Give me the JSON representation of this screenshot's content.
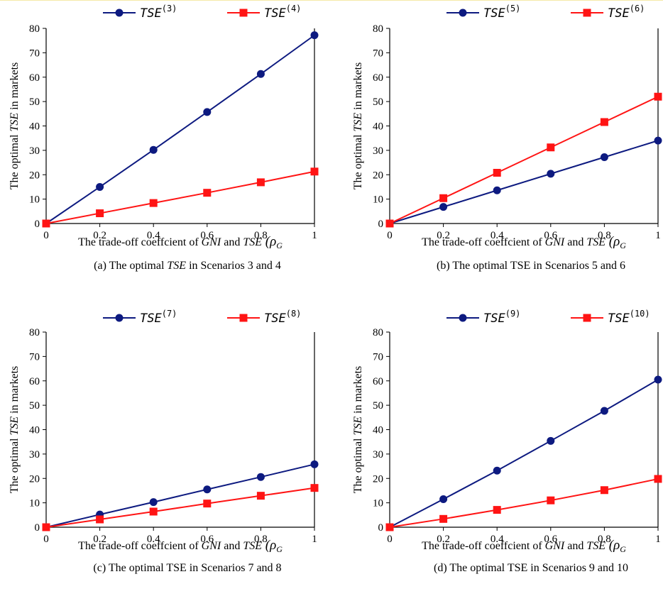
{
  "chart_data": [
    {
      "type": "line",
      "x": [
        0,
        0.2,
        0.4,
        0.6,
        0.8,
        1
      ],
      "xtick_labels": [
        "0",
        "0.2",
        "0.4",
        "0.6",
        "0.8",
        "1"
      ],
      "ylim": [
        0,
        80
      ],
      "yticks": [
        0,
        10,
        20,
        30,
        40,
        50,
        60,
        70,
        80
      ],
      "ylabel": {
        "pre": "The optimal ",
        "em": "TSE",
        "post": " in markets"
      },
      "xlabel": {
        "pre": "The trade-off coeffcient of ",
        "em1": "GNI",
        "mid": " and ",
        "em2": "TSE",
        "sym": " (ρ",
        "sub": "G"
      },
      "caption": {
        "pre": "(a) The optimal ",
        "em": "TSE",
        "post": " in Scenarios 3 and 4"
      },
      "legend_position": "top",
      "series": [
        {
          "name": "TSE",
          "sup": "(3)",
          "color": "#0d1a80",
          "marker": "circle",
          "values": [
            0,
            15,
            30.2,
            45.7,
            61.3,
            77.2
          ]
        },
        {
          "name": "TSE",
          "sup": "(4)",
          "color": "#ff1414",
          "marker": "square",
          "values": [
            0,
            4.2,
            8.4,
            12.6,
            16.9,
            21.3
          ]
        }
      ]
    },
    {
      "type": "line",
      "x": [
        0,
        0.2,
        0.4,
        0.6,
        0.8,
        1
      ],
      "xtick_labels": [
        "0",
        "0.2",
        "0.4",
        "0.6",
        "0.8",
        "1"
      ],
      "ylim": [
        0,
        80
      ],
      "yticks": [
        0,
        10,
        20,
        30,
        40,
        50,
        60,
        70,
        80
      ],
      "ylabel": {
        "pre": "The optimal ",
        "em": "TSE",
        "post": " in markets"
      },
      "xlabel": {
        "pre": "The trade-off coeffcient of ",
        "em1": "GNI",
        "mid": " and ",
        "em2": "TSE",
        "sym": " (ρ",
        "sub": "G"
      },
      "caption": {
        "pre": "(b) The optimal TSE in Scenarios 5 and 6",
        "em": "",
        "post": ""
      },
      "legend_position": "top",
      "series": [
        {
          "name": "TSE",
          "sup": "(5)",
          "color": "#0d1a80",
          "marker": "circle",
          "values": [
            0,
            6.8,
            13.6,
            20.4,
            27.2,
            34
          ]
        },
        {
          "name": "TSE",
          "sup": "(6)",
          "color": "#ff1414",
          "marker": "square",
          "values": [
            0,
            10.4,
            20.8,
            31.2,
            41.6,
            52
          ]
        }
      ]
    },
    {
      "type": "line",
      "x": [
        0,
        0.2,
        0.4,
        0.6,
        0.8,
        1
      ],
      "xtick_labels": [
        "0",
        "0.2",
        "0.4",
        "0.6",
        "0.8",
        "1"
      ],
      "ylim": [
        0,
        80
      ],
      "yticks": [
        0,
        10,
        20,
        30,
        40,
        50,
        60,
        70,
        80
      ],
      "ylabel": {
        "pre": "The optimal ",
        "em": "TSE",
        "post": " in markets"
      },
      "xlabel": {
        "pre": "The trade-off coeffcient of ",
        "em1": "GNI",
        "mid": " and ",
        "em2": "TSE",
        "sym": " (ρ",
        "sub": "G"
      },
      "caption": {
        "pre": "(c) The optimal TSE in Scenarios 7 and 8",
        "em": "",
        "post": ""
      },
      "legend_position": "top",
      "series": [
        {
          "name": "TSE",
          "sup": "(7)",
          "color": "#0d1a80",
          "marker": "circle",
          "values": [
            0,
            5.2,
            10.3,
            15.5,
            20.6,
            25.8
          ]
        },
        {
          "name": "TSE",
          "sup": "(8)",
          "color": "#ff1414",
          "marker": "square",
          "values": [
            0,
            3.2,
            6.4,
            9.7,
            12.9,
            16.1
          ]
        }
      ]
    },
    {
      "type": "line",
      "x": [
        0,
        0.2,
        0.4,
        0.6,
        0.8,
        1
      ],
      "xtick_labels": [
        "0",
        "0.2",
        "0.4",
        "0.6",
        "0.8",
        "1"
      ],
      "ylim": [
        0,
        80
      ],
      "yticks": [
        0,
        10,
        20,
        30,
        40,
        50,
        60,
        70,
        80
      ],
      "ylabel": {
        "pre": "The optimal ",
        "em": "TSE",
        "post": " in markets"
      },
      "xlabel": {
        "pre": "The trade-off coeffcient of ",
        "em1": "GNI",
        "mid": " and ",
        "em2": "TSE",
        "sym": " (ρ",
        "sub": "G"
      },
      "caption": {
        "pre": "(d) The optimal TSE in Scenarios 9 and 10",
        "em": "",
        "post": ""
      },
      "legend_position": "top",
      "series": [
        {
          "name": "TSE",
          "sup": "(9)",
          "color": "#0d1a80",
          "marker": "circle",
          "values": [
            0,
            11.5,
            23.2,
            35.4,
            47.7,
            60.5
          ]
        },
        {
          "name": "TSE",
          "sup": "(10)",
          "color": "#ff1414",
          "marker": "square",
          "values": [
            0,
            3.4,
            7.1,
            11,
            15.2,
            19.8
          ]
        }
      ]
    }
  ]
}
